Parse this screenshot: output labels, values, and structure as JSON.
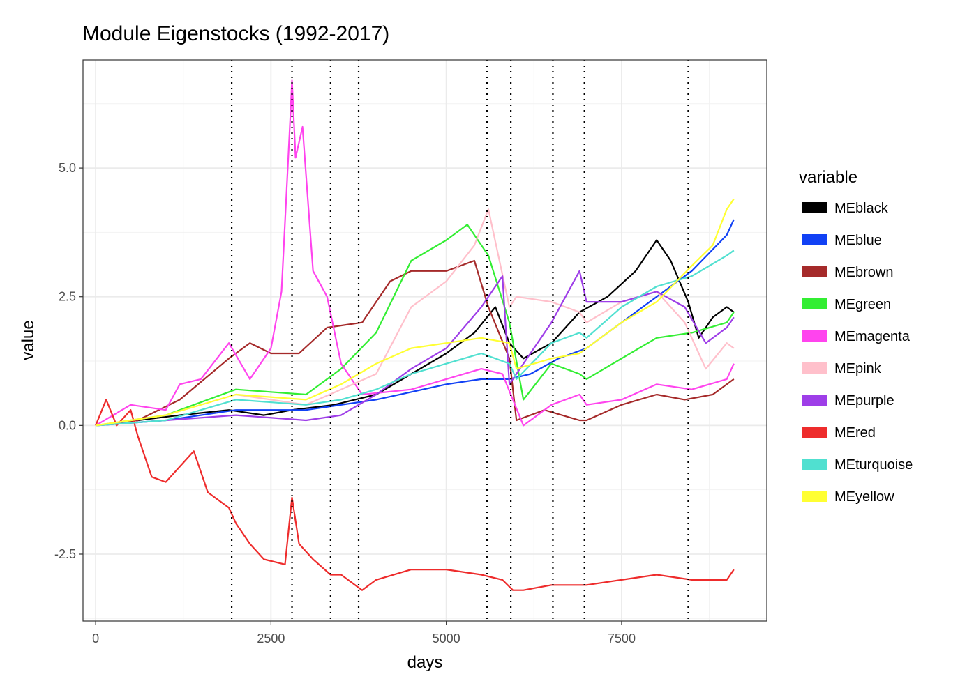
{
  "chart_data": {
    "type": "line",
    "title": "Module Eigenstocks (1992-2017)",
    "xlabel": "days",
    "ylabel": "value",
    "xlim": [
      -180,
      9570
    ],
    "ylim": [
      -3.8,
      7.1
    ],
    "x_ticks": [
      0,
      2500,
      5000,
      7500
    ],
    "x_tick_labels": [
      "0",
      "2500",
      "5000",
      "7500"
    ],
    "y_ticks": [
      -2.5,
      0.0,
      2.5,
      5.0
    ],
    "y_tick_labels": [
      "-2.5",
      "0.0",
      "2.5",
      "5.0"
    ],
    "grid": true,
    "legend_title": "variable",
    "legend_position": "right",
    "vlines": [
      1940,
      2800,
      3350,
      3750,
      5580,
      5920,
      6520,
      6970,
      8450
    ],
    "series": [
      {
        "name": "MEblack",
        "color": "#000000",
        "x": [
          0,
          600,
          1200,
          1900,
          2400,
          2800,
          3400,
          4000,
          4500,
          5000,
          5400,
          5700,
          5900,
          6100,
          6500,
          6900,
          7300,
          7700,
          8000,
          8200,
          8450,
          8600,
          8800,
          9000,
          9100
        ],
        "y": [
          0,
          0.1,
          0.2,
          0.3,
          0.2,
          0.3,
          0.4,
          0.6,
          1.0,
          1.4,
          1.8,
          2.3,
          1.6,
          1.3,
          1.6,
          2.2,
          2.5,
          3.0,
          3.6,
          3.2,
          2.4,
          1.7,
          2.1,
          2.3,
          2.2
        ]
      },
      {
        "name": "MEblue",
        "color": "#1141f5",
        "x": [
          0,
          1000,
          2000,
          3000,
          4000,
          5000,
          5500,
          5900,
          6200,
          6600,
          7000,
          7500,
          8000,
          8500,
          9000,
          9100
        ],
        "y": [
          0,
          0.1,
          0.3,
          0.3,
          0.5,
          0.8,
          0.9,
          0.9,
          1.0,
          1.3,
          1.5,
          2.0,
          2.5,
          3.0,
          3.7,
          4.0
        ]
      },
      {
        "name": "MEbrown",
        "color": "#a52a2a",
        "x": [
          0,
          600,
          1200,
          1900,
          2200,
          2500,
          2900,
          3300,
          3800,
          4200,
          4500,
          5000,
          5400,
          5600,
          5900,
          6000,
          6400,
          6900,
          7000,
          7500,
          8000,
          8400,
          8800,
          9100
        ],
        "y": [
          0,
          0.1,
          0.5,
          1.3,
          1.6,
          1.4,
          1.4,
          1.9,
          2.0,
          2.8,
          3.0,
          3.0,
          3.2,
          2.3,
          1.3,
          0.1,
          0.3,
          0.1,
          0.1,
          0.4,
          0.6,
          0.5,
          0.6,
          0.9
        ]
      },
      {
        "name": "MEgreen",
        "color": "#33ee33",
        "x": [
          0,
          1000,
          2000,
          3000,
          3500,
          4000,
          4500,
          5000,
          5300,
          5600,
          5900,
          6100,
          6500,
          6900,
          7000,
          7500,
          8000,
          8500,
          9000,
          9100
        ],
        "y": [
          0,
          0.2,
          0.7,
          0.6,
          1.1,
          1.8,
          3.2,
          3.6,
          3.9,
          3.3,
          2.0,
          0.5,
          1.2,
          1.0,
          0.9,
          1.3,
          1.7,
          1.8,
          2.0,
          2.2
        ]
      },
      {
        "name": "MEmagenta",
        "color": "#ff44ee",
        "x": [
          0,
          500,
          1000,
          1200,
          1500,
          1900,
          2200,
          2500,
          2650,
          2780,
          2800,
          2850,
          2950,
          3100,
          3300,
          3500,
          3800,
          4500,
          5000,
          5500,
          5800,
          5950,
          6100,
          6500,
          6900,
          7000,
          7500,
          8000,
          8500,
          9000,
          9100
        ],
        "y": [
          0,
          0.4,
          0.3,
          0.8,
          0.9,
          1.6,
          0.9,
          1.5,
          2.6,
          6.1,
          6.7,
          5.2,
          5.8,
          3.0,
          2.5,
          1.2,
          0.6,
          0.7,
          0.9,
          1.1,
          1.0,
          0.5,
          0.0,
          0.4,
          0.6,
          0.4,
          0.5,
          0.8,
          0.7,
          0.9,
          1.2
        ]
      },
      {
        "name": "MEpink",
        "color": "#ffc0cb",
        "x": [
          0,
          1000,
          2000,
          3000,
          3500,
          4000,
          4500,
          5000,
          5400,
          5600,
          5900,
          6000,
          6500,
          6900,
          7000,
          7500,
          8000,
          8400,
          8700,
          9000,
          9100
        ],
        "y": [
          0,
          0.2,
          0.6,
          0.4,
          0.7,
          1.0,
          2.3,
          2.8,
          3.5,
          4.2,
          2.3,
          2.5,
          2.4,
          2.2,
          2.0,
          2.4,
          2.6,
          2.0,
          1.1,
          1.6,
          1.5
        ]
      },
      {
        "name": "MEpurple",
        "color": "#9e3ee8",
        "x": [
          0,
          1000,
          2000,
          3000,
          3500,
          4000,
          4500,
          5000,
          5500,
          5800,
          5900,
          6100,
          6500,
          6900,
          7000,
          7500,
          8000,
          8400,
          8700,
          9000,
          9100
        ],
        "y": [
          0,
          0.1,
          0.2,
          0.1,
          0.2,
          0.6,
          1.1,
          1.5,
          2.3,
          2.9,
          0.8,
          1.2,
          2.0,
          3.0,
          2.4,
          2.4,
          2.6,
          2.3,
          1.6,
          1.9,
          2.1
        ]
      },
      {
        "name": "MEred",
        "color": "#ee2c2c",
        "x": [
          0,
          150,
          300,
          500,
          600,
          800,
          1000,
          1200,
          1400,
          1600,
          1900,
          2000,
          2200,
          2400,
          2700,
          2800,
          2900,
          3100,
          3350,
          3500,
          3800,
          4000,
          4500,
          5000,
          5500,
          5800,
          5950,
          6100,
          6500,
          6900,
          7000,
          7500,
          8000,
          8500,
          9000,
          9100
        ],
        "y": [
          0,
          0.5,
          0.0,
          0.3,
          -0.2,
          -1.0,
          -1.1,
          -0.8,
          -0.5,
          -1.3,
          -1.6,
          -1.9,
          -2.3,
          -2.6,
          -2.7,
          -1.4,
          -2.3,
          -2.6,
          -2.9,
          -2.9,
          -3.2,
          -3.0,
          -2.8,
          -2.8,
          -2.9,
          -3.0,
          -3.2,
          -3.2,
          -3.1,
          -3.1,
          -3.1,
          -3.0,
          -2.9,
          -3.0,
          -3.0,
          -2.8
        ]
      },
      {
        "name": "MEturquoise",
        "color": "#50e0d0",
        "x": [
          0,
          1000,
          2000,
          3000,
          3500,
          4000,
          4500,
          5000,
          5500,
          5900,
          6000,
          6500,
          6900,
          7000,
          7500,
          8000,
          8500,
          9000,
          9100
        ],
        "y": [
          0,
          0.1,
          0.5,
          0.4,
          0.5,
          0.7,
          1.0,
          1.2,
          1.4,
          1.2,
          0.9,
          1.6,
          1.8,
          1.7,
          2.3,
          2.7,
          2.9,
          3.3,
          3.4
        ]
      },
      {
        "name": "MEyellow",
        "color": "#ffff33",
        "x": [
          0,
          1000,
          2000,
          3000,
          3500,
          4000,
          4500,
          5000,
          5500,
          5900,
          6000,
          6500,
          6900,
          7000,
          7500,
          8000,
          8500,
          8800,
          9000,
          9100
        ],
        "y": [
          0,
          0.2,
          0.6,
          0.5,
          0.8,
          1.2,
          1.5,
          1.6,
          1.7,
          1.6,
          1.1,
          1.3,
          1.4,
          1.5,
          2.0,
          2.4,
          3.1,
          3.5,
          4.2,
          4.4
        ]
      }
    ]
  }
}
